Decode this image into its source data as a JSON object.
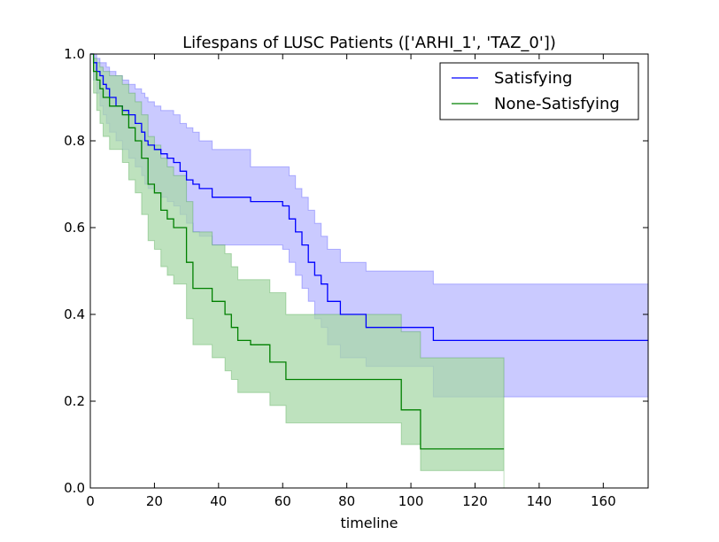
{
  "chart_data": {
    "type": "line",
    "step": true,
    "title": "Lifespans of LUSC Patients (['ARHI_1', 'TAZ_0'])",
    "xlabel": "timeline",
    "ylabel": "",
    "xlim": [
      0,
      174
    ],
    "ylim": [
      0,
      1.0
    ],
    "xticks": [
      0,
      20,
      40,
      60,
      80,
      100,
      120,
      140,
      160
    ],
    "yticks": [
      0.0,
      0.2,
      0.4,
      0.6,
      0.8,
      1.0
    ],
    "xtick_labels": [
      "0",
      "20",
      "40",
      "60",
      "80",
      "100",
      "120",
      "140",
      "160"
    ],
    "ytick_labels": [
      "0.0",
      "0.2",
      "0.4",
      "0.6",
      "0.8",
      "1.0"
    ],
    "grid": false,
    "legend_position": "top-right",
    "series": [
      {
        "name": "Satisfying",
        "color": "#0000ff",
        "fill": "#b8b8ff",
        "x": [
          0,
          1,
          2,
          3,
          4,
          5,
          6,
          8,
          10,
          12,
          14,
          16,
          17,
          18,
          20,
          22,
          24,
          26,
          28,
          30,
          32,
          34,
          38,
          44,
          50,
          56,
          60,
          62,
          64,
          66,
          68,
          70,
          72,
          74,
          78,
          86,
          107,
          174
        ],
        "y": [
          1.0,
          0.98,
          0.96,
          0.95,
          0.93,
          0.92,
          0.9,
          0.88,
          0.87,
          0.86,
          0.84,
          0.82,
          0.8,
          0.79,
          0.78,
          0.77,
          0.76,
          0.75,
          0.73,
          0.71,
          0.7,
          0.69,
          0.67,
          0.67,
          0.66,
          0.66,
          0.65,
          0.62,
          0.59,
          0.56,
          0.52,
          0.49,
          0.47,
          0.43,
          0.4,
          0.37,
          0.34,
          0.34
        ],
        "upper": [
          1.0,
          1.0,
          0.99,
          0.98,
          0.98,
          0.97,
          0.96,
          0.95,
          0.94,
          0.93,
          0.92,
          0.91,
          0.9,
          0.89,
          0.88,
          0.87,
          0.87,
          0.86,
          0.84,
          0.83,
          0.82,
          0.8,
          0.78,
          0.78,
          0.74,
          0.74,
          0.74,
          0.72,
          0.69,
          0.67,
          0.64,
          0.61,
          0.58,
          0.55,
          0.52,
          0.5,
          0.47,
          0.47
        ],
        "lower": [
          1.0,
          0.94,
          0.91,
          0.88,
          0.86,
          0.84,
          0.82,
          0.8,
          0.78,
          0.76,
          0.74,
          0.72,
          0.7,
          0.69,
          0.68,
          0.67,
          0.66,
          0.65,
          0.63,
          0.61,
          0.59,
          0.58,
          0.56,
          0.56,
          0.56,
          0.56,
          0.55,
          0.52,
          0.49,
          0.46,
          0.43,
          0.39,
          0.37,
          0.33,
          0.3,
          0.28,
          0.21,
          0.21
        ]
      },
      {
        "name": "None-Satisfying",
        "color": "#008000",
        "fill": "#a8d8a8",
        "x": [
          0,
          1,
          2,
          3,
          4,
          6,
          10,
          12,
          14,
          16,
          18,
          20,
          22,
          24,
          26,
          30,
          32,
          38,
          42,
          44,
          46,
          50,
          56,
          61,
          97,
          103,
          129
        ],
        "y": [
          1.0,
          0.96,
          0.94,
          0.92,
          0.9,
          0.88,
          0.86,
          0.83,
          0.8,
          0.76,
          0.7,
          0.68,
          0.64,
          0.62,
          0.6,
          0.52,
          0.46,
          0.43,
          0.4,
          0.37,
          0.34,
          0.33,
          0.29,
          0.25,
          0.18,
          0.09,
          0.09
        ],
        "upper": [
          1.0,
          0.99,
          0.98,
          0.97,
          0.96,
          0.95,
          0.93,
          0.91,
          0.89,
          0.86,
          0.81,
          0.79,
          0.76,
          0.74,
          0.72,
          0.66,
          0.59,
          0.56,
          0.54,
          0.51,
          0.48,
          0.48,
          0.45,
          0.4,
          0.36,
          0.3,
          0.3
        ],
        "lower": [
          1.0,
          0.91,
          0.87,
          0.84,
          0.81,
          0.78,
          0.75,
          0.71,
          0.68,
          0.63,
          0.57,
          0.55,
          0.51,
          0.49,
          0.47,
          0.39,
          0.33,
          0.3,
          0.27,
          0.25,
          0.22,
          0.22,
          0.19,
          0.15,
          0.1,
          0.04,
          0.0
        ]
      }
    ]
  }
}
